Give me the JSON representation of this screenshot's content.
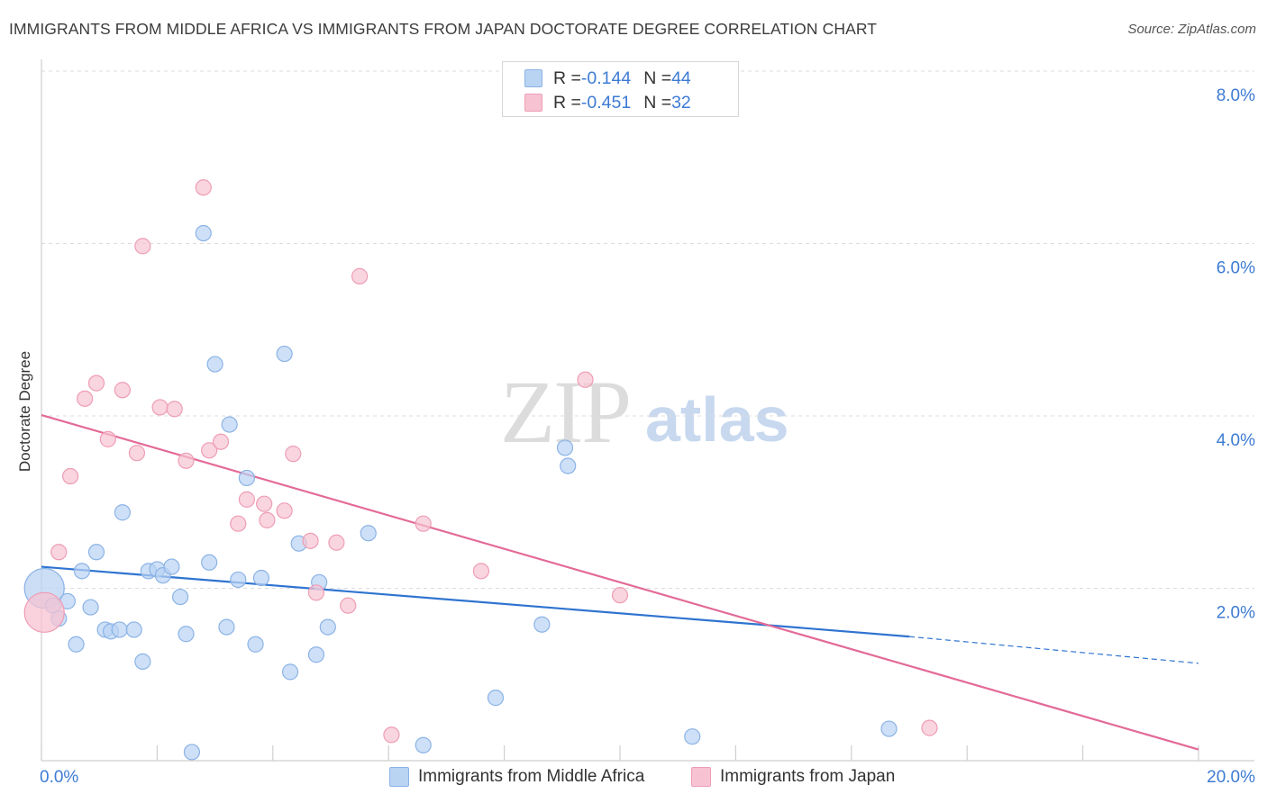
{
  "header": {
    "title": "IMMIGRANTS FROM MIDDLE AFRICA VS IMMIGRANTS FROM JAPAN DOCTORATE DEGREE CORRELATION CHART",
    "source": "Source: ZipAtlas.com"
  },
  "watermark": {
    "zip": "ZIP",
    "atlas": "atlas"
  },
  "legend": {
    "rows": [
      {
        "r_label": "R = ",
        "r_value": "-0.144",
        "n_label": "N = ",
        "n_value": "44"
      },
      {
        "r_label": "R = ",
        "r_value": "-0.451",
        "n_label": "N = ",
        "n_value": "32"
      }
    ]
  },
  "bottom_legend": {
    "series1": "Immigrants from Middle Africa",
    "series2": "Immigrants from Japan"
  },
  "colors": {
    "blue_fill": "#b9d3f3",
    "blue_stroke": "#8bb3e6",
    "blue_line": "#2f74d0",
    "pink_fill": "#f7c3d2",
    "pink_stroke": "#ee9db5",
    "pink_line": "#e36a97",
    "axis_label": "#3d7bd4"
  },
  "chart_data": {
    "type": "scatter",
    "title": "IMMIGRANTS FROM MIDDLE AFRICA VS IMMIGRANTS FROM JAPAN DOCTORATE DEGREE CORRELATION CHART",
    "xlabel": "",
    "ylabel": "Doctorate Degree",
    "xlim": [
      0,
      20
    ],
    "ylim": [
      0,
      8
    ],
    "x_tick_labels": [
      "0.0%",
      "20.0%"
    ],
    "y_ticks": [
      2,
      4,
      6,
      8
    ],
    "y_tick_labels": [
      "2.0%",
      "4.0%",
      "6.0%",
      "8.0%"
    ],
    "grid": true,
    "legend_position": "top-center",
    "series": [
      {
        "name": "Immigrants from Middle Africa",
        "r": -0.144,
        "n": 44,
        "trend": {
          "x": [
            0.0,
            15.0
          ],
          "y": [
            2.25,
            1.44
          ],
          "dashed_to": [
            20.0,
            1.13
          ]
        },
        "points": [
          {
            "x": 0.05,
            "y": 2.0,
            "big": true
          },
          {
            "x": 0.2,
            "y": 1.8
          },
          {
            "x": 0.3,
            "y": 1.65
          },
          {
            "x": 0.45,
            "y": 1.85
          },
          {
            "x": 0.6,
            "y": 1.35
          },
          {
            "x": 0.7,
            "y": 2.2
          },
          {
            "x": 0.85,
            "y": 1.78
          },
          {
            "x": 0.95,
            "y": 2.42
          },
          {
            "x": 1.1,
            "y": 1.52
          },
          {
            "x": 1.2,
            "y": 1.5
          },
          {
            "x": 1.35,
            "y": 1.52
          },
          {
            "x": 1.4,
            "y": 2.88
          },
          {
            "x": 1.6,
            "y": 1.52
          },
          {
            "x": 1.75,
            "y": 1.15
          },
          {
            "x": 1.85,
            "y": 2.2
          },
          {
            "x": 2.0,
            "y": 2.22
          },
          {
            "x": 2.1,
            "y": 2.15
          },
          {
            "x": 2.25,
            "y": 2.25
          },
          {
            "x": 2.4,
            "y": 1.9
          },
          {
            "x": 2.5,
            "y": 1.47
          },
          {
            "x": 2.6,
            "y": 0.1
          },
          {
            "x": 2.8,
            "y": 6.12
          },
          {
            "x": 2.9,
            "y": 2.3
          },
          {
            "x": 3.0,
            "y": 4.6
          },
          {
            "x": 3.2,
            "y": 1.55
          },
          {
            "x": 3.25,
            "y": 3.9
          },
          {
            "x": 3.4,
            "y": 2.1
          },
          {
            "x": 3.55,
            "y": 3.28
          },
          {
            "x": 3.7,
            "y": 1.35
          },
          {
            "x": 3.8,
            "y": 2.12
          },
          {
            "x": 4.2,
            "y": 4.72
          },
          {
            "x": 4.3,
            "y": 1.03
          },
          {
            "x": 4.45,
            "y": 2.52
          },
          {
            "x": 4.75,
            "y": 1.23
          },
          {
            "x": 4.8,
            "y": 2.07
          },
          {
            "x": 4.95,
            "y": 1.55
          },
          {
            "x": 5.65,
            "y": 2.64
          },
          {
            "x": 6.6,
            "y": 0.18
          },
          {
            "x": 7.85,
            "y": 0.73
          },
          {
            "x": 8.65,
            "y": 1.58
          },
          {
            "x": 9.05,
            "y": 3.63
          },
          {
            "x": 9.1,
            "y": 3.42
          },
          {
            "x": 11.25,
            "y": 0.28
          },
          {
            "x": 14.65,
            "y": 0.37
          }
        ]
      },
      {
        "name": "Immigrants from Japan",
        "r": -0.451,
        "n": 32,
        "trend": {
          "x": [
            0.0,
            20.0
          ],
          "y": [
            4.01,
            0.13
          ]
        },
        "points": [
          {
            "x": 0.05,
            "y": 1.72,
            "big": true
          },
          {
            "x": 0.3,
            "y": 2.42
          },
          {
            "x": 0.5,
            "y": 3.3
          },
          {
            "x": 0.75,
            "y": 4.2
          },
          {
            "x": 0.95,
            "y": 4.38
          },
          {
            "x": 1.15,
            "y": 3.73
          },
          {
            "x": 1.4,
            "y": 4.3
          },
          {
            "x": 1.65,
            "y": 3.57
          },
          {
            "x": 1.75,
            "y": 5.97
          },
          {
            "x": 2.05,
            "y": 4.1
          },
          {
            "x": 2.3,
            "y": 4.08
          },
          {
            "x": 2.5,
            "y": 3.48
          },
          {
            "x": 2.8,
            "y": 6.65
          },
          {
            "x": 2.9,
            "y": 3.6
          },
          {
            "x": 3.1,
            "y": 3.7
          },
          {
            "x": 3.4,
            "y": 2.75
          },
          {
            "x": 3.55,
            "y": 3.03
          },
          {
            "x": 3.85,
            "y": 2.98
          },
          {
            "x": 3.9,
            "y": 2.79
          },
          {
            "x": 4.2,
            "y": 2.9
          },
          {
            "x": 4.35,
            "y": 3.56
          },
          {
            "x": 4.65,
            "y": 2.55
          },
          {
            "x": 4.75,
            "y": 1.95
          },
          {
            "x": 5.1,
            "y": 2.53
          },
          {
            "x": 5.3,
            "y": 1.8
          },
          {
            "x": 5.5,
            "y": 5.62
          },
          {
            "x": 6.05,
            "y": 0.3
          },
          {
            "x": 6.6,
            "y": 2.75
          },
          {
            "x": 7.6,
            "y": 2.2
          },
          {
            "x": 9.4,
            "y": 4.42
          },
          {
            "x": 10.0,
            "y": 1.92
          },
          {
            "x": 15.35,
            "y": 0.38
          }
        ]
      }
    ]
  }
}
